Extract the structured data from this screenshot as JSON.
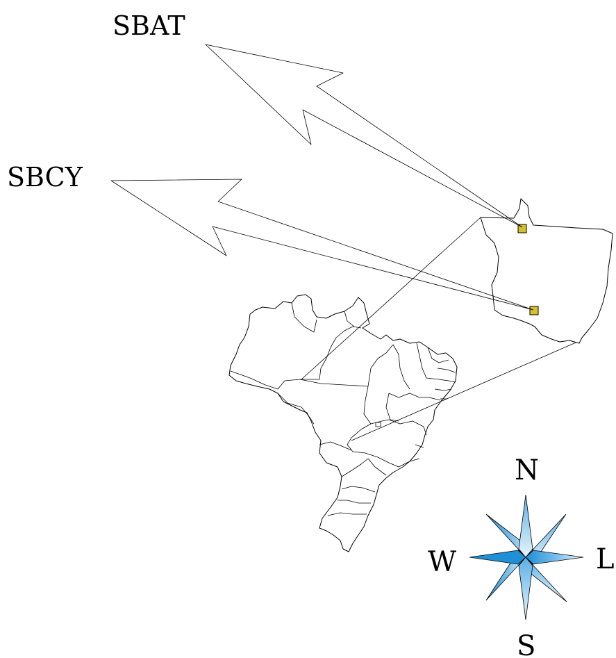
{
  "airports": [
    {
      "code": "SBAT"
    },
    {
      "code": "SBCY"
    }
  ],
  "compass": {
    "north": "N",
    "south": "S",
    "east": "L",
    "west": "W"
  },
  "colors": {
    "airport_marker": "#d4c22a",
    "compass_dark": "#1f8fd6",
    "compass_light": "#e6f3fb",
    "outline": "#000000",
    "background": "#ffffff"
  }
}
